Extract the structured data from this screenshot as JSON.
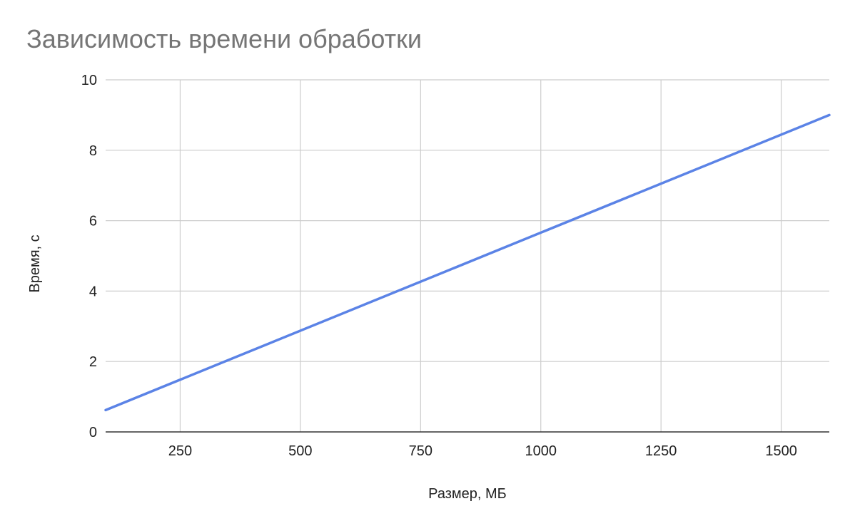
{
  "chart_data": {
    "type": "line",
    "title": "Зависимость времени обработки",
    "xlabel": "Размер, МБ",
    "ylabel": "Время, с",
    "xlim": [
      95,
      1600
    ],
    "ylim": [
      0,
      10
    ],
    "x_ticks": [
      250,
      500,
      750,
      1000,
      1250,
      1500
    ],
    "y_ticks": [
      0,
      2,
      4,
      6,
      8,
      10
    ],
    "grid": true,
    "legend": "none",
    "series": [
      {
        "color": "#5b83e6",
        "x": [
          95,
          1600
        ],
        "y": [
          0.62,
          9.0
        ]
      }
    ]
  }
}
